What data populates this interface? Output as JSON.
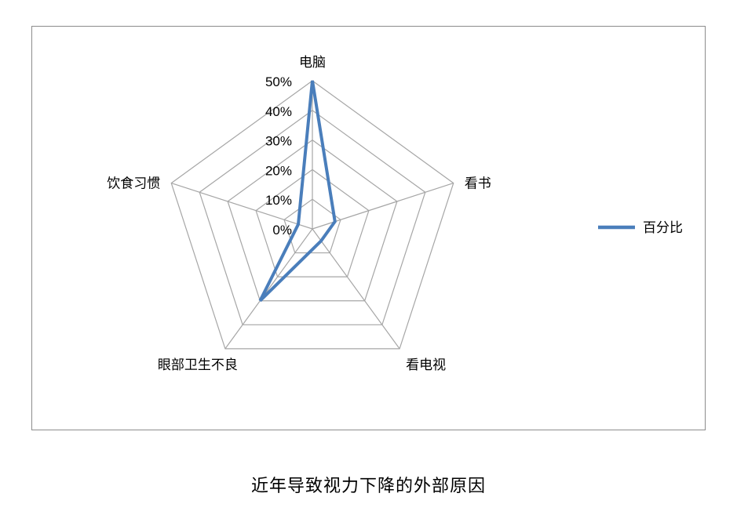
{
  "caption": "近年导致视力下降的外部原因",
  "chart_data": {
    "type": "radar",
    "categories": [
      "电脑",
      "看书",
      "看电视",
      "眼部卫生不良",
      "饮食习惯"
    ],
    "series": [
      {
        "name": "百分比",
        "values": [
          50,
          8,
          5,
          30,
          5
        ],
        "color": "#4a7ebb"
      }
    ],
    "rlim": [
      0,
      50
    ],
    "ticks": [
      "0%",
      "10%",
      "20%",
      "30%",
      "40%",
      "50%"
    ],
    "grid": true,
    "grid_color": "#a6a6a6",
    "legend_position": "right"
  }
}
